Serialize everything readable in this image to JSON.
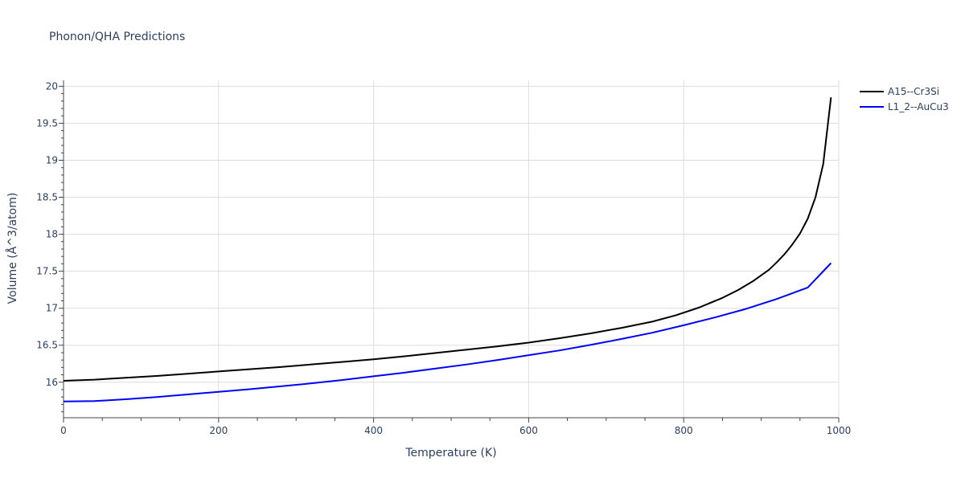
{
  "chart_data": {
    "type": "line",
    "title": "Phonon/QHA Predictions",
    "xlabel": "Temperature (K)",
    "ylabel": "Volume (Å^3/atom)",
    "xlim": [
      0,
      1000
    ],
    "ylim": [
      15.52,
      20.08
    ],
    "xticks": [
      0,
      200,
      400,
      600,
      800,
      1000
    ],
    "yticks": [
      16,
      16.5,
      17,
      17.5,
      18,
      18.5,
      19,
      19.5,
      20
    ],
    "grid": true,
    "legend_position": "top-right",
    "series": [
      {
        "name": "A15--Cr3Si",
        "color": "#000000",
        "x": [
          0,
          40,
          80,
          120,
          160,
          200,
          240,
          280,
          320,
          360,
          400,
          440,
          480,
          520,
          560,
          600,
          640,
          680,
          720,
          760,
          790,
          820,
          850,
          870,
          890,
          910,
          920,
          930,
          940,
          950,
          960,
          970,
          980,
          990
        ],
        "y": [
          16.02,
          16.035,
          16.06,
          16.085,
          16.115,
          16.145,
          16.175,
          16.205,
          16.24,
          16.275,
          16.31,
          16.35,
          16.395,
          16.44,
          16.485,
          16.535,
          16.595,
          16.66,
          16.735,
          16.82,
          16.905,
          17.01,
          17.14,
          17.245,
          17.37,
          17.52,
          17.62,
          17.73,
          17.86,
          18.01,
          18.21,
          18.5,
          18.95,
          19.85
        ]
      },
      {
        "name": "L1_2--AuCu3",
        "color": "#0000ff",
        "x": [
          0,
          40,
          80,
          120,
          160,
          200,
          240,
          280,
          320,
          360,
          400,
          440,
          480,
          520,
          560,
          600,
          640,
          680,
          720,
          760,
          800,
          840,
          880,
          920,
          960,
          990
        ],
        "y": [
          15.74,
          15.745,
          15.77,
          15.8,
          15.835,
          15.87,
          15.905,
          15.945,
          15.985,
          16.03,
          16.08,
          16.13,
          16.185,
          16.24,
          16.3,
          16.365,
          16.43,
          16.505,
          16.585,
          16.67,
          16.77,
          16.875,
          16.99,
          17.125,
          17.28,
          17.61
        ]
      }
    ]
  }
}
